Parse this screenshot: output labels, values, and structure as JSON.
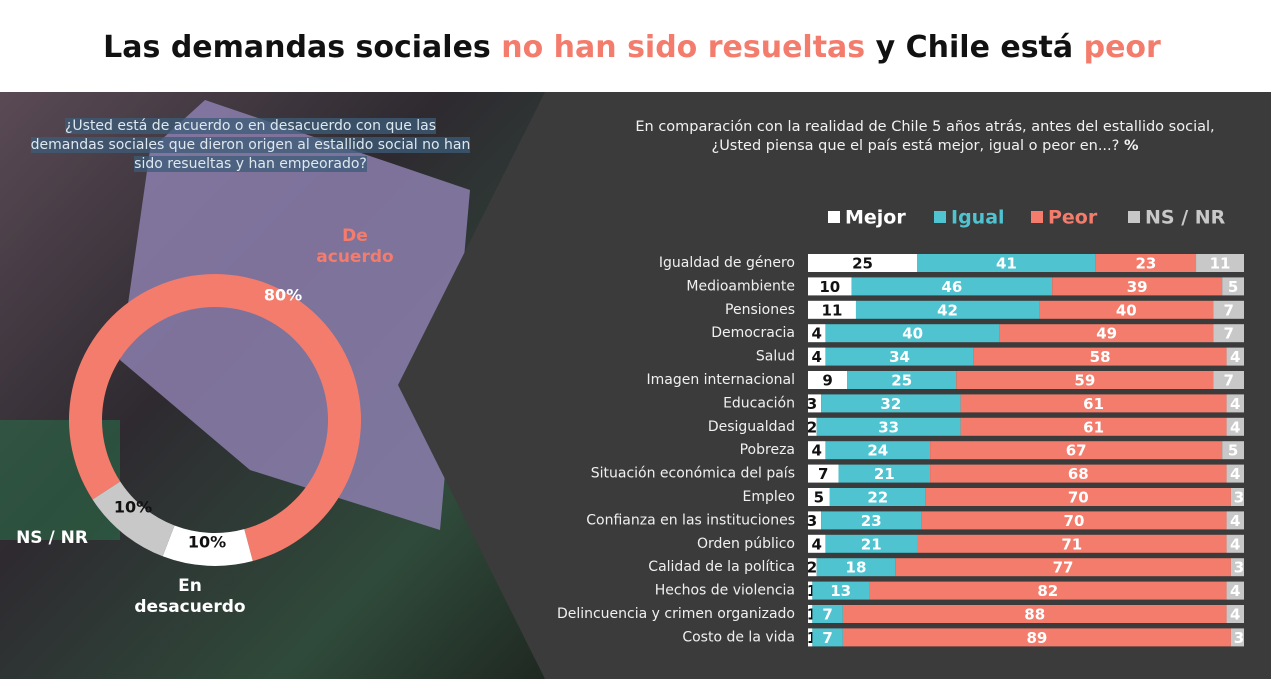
{
  "header": {
    "title_parts": [
      {
        "text": "Las demandas sociales",
        "color": "#111111"
      },
      {
        "text": "no han sido resueltas",
        "color": "#f47c6c"
      },
      {
        "text": "y Chile está",
        "color": "#111111"
      },
      {
        "text": "peor",
        "color": "#f47c6c"
      }
    ]
  },
  "chart_data": [
    {
      "type": "pie",
      "donut": true,
      "question": "¿Usted está de acuerdo o en desacuerdo con que las demandas sociales que dieron origen al estallido social no han sido resueltas y han empeorado?",
      "categories": [
        "De acuerdo",
        "En desacuerdo",
        "NS / NR"
      ],
      "values": [
        80,
        10,
        10
      ],
      "value_labels": [
        "80%",
        "10%",
        "10%"
      ],
      "colors": [
        "#f47c6c",
        "#ffffff",
        "#c8c8c8"
      ]
    },
    {
      "type": "bar",
      "orientation": "horizontal",
      "stacked": true,
      "question": "En comparación con la realidad de Chile 5 años atrás, antes del estallido social, ¿Usted piensa que el país está mejor, igual o peor en...?",
      "unit": "%",
      "legend": "top",
      "categories": [
        "Igualdad de género",
        "Medioambiente",
        "Pensiones",
        "Democracia",
        "Salud",
        "Imagen internacional",
        "Educación",
        "Desigualdad",
        "Pobreza",
        "Situación económica del país",
        "Empleo",
        "Confianza en las instituciones",
        "Orden público",
        "Calidad de la política",
        "Hechos de violencia",
        "Delincuencia y crimen organizado",
        "Costo de la vida"
      ],
      "series": [
        {
          "name": "Mejor",
          "color": "#ffffff",
          "label_color": "#111111",
          "values": [
            25,
            10,
            11,
            4,
            4,
            9,
            3,
            2,
            4,
            7,
            5,
            3,
            4,
            2,
            1,
            1,
            1
          ]
        },
        {
          "name": "Igual",
          "color": "#4fc3d0",
          "label_color": "#ffffff",
          "values": [
            41,
            46,
            42,
            40,
            34,
            25,
            32,
            33,
            24,
            21,
            22,
            23,
            21,
            18,
            13,
            7,
            7
          ]
        },
        {
          "name": "Peor",
          "color": "#f47c6c",
          "label_color": "#ffffff",
          "values": [
            23,
            39,
            40,
            49,
            58,
            59,
            61,
            61,
            67,
            68,
            70,
            70,
            71,
            77,
            82,
            88,
            89
          ]
        },
        {
          "name": "NS / NR",
          "color": "#c8c8c8",
          "label_color": "#ffffff",
          "values": [
            11,
            5,
            7,
            7,
            4,
            7,
            4,
            4,
            5,
            4,
            3,
            4,
            4,
            3,
            4,
            4,
            3
          ]
        }
      ]
    }
  ]
}
